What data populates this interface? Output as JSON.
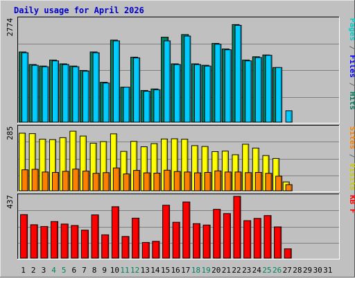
{
  "chart_data": [
    {
      "type": "bar",
      "title": "Daily usage for April 2026",
      "categories": [
        "1",
        "2",
        "3",
        "4",
        "5",
        "6",
        "7",
        "8",
        "9",
        "10",
        "11",
        "12",
        "13",
        "14",
        "15",
        "16",
        "17",
        "18",
        "19",
        "20",
        "21",
        "22",
        "23",
        "24",
        "25",
        "26",
        "27",
        "28",
        "29",
        "30",
        "31"
      ],
      "weekend_days": [
        "4",
        "5",
        "11",
        "12",
        "18",
        "19",
        "25",
        "26"
      ],
      "ylim": [
        0,
        2774
      ],
      "max_label": "2774",
      "right_label": [
        {
          "text": "Pages",
          "color": "#00cccc"
        },
        {
          "text": " / ",
          "color": "#666666"
        },
        {
          "text": "Files",
          "color": "#0000ff"
        },
        {
          "text": " / ",
          "color": "#666666"
        },
        {
          "text": "Hits",
          "color": "#007f5f"
        }
      ],
      "series": [
        {
          "name": "Hits",
          "color": "#008060",
          "values": [
            1895,
            1555,
            1515,
            1675,
            1575,
            1515,
            1395,
            1895,
            1075,
            2215,
            945,
            1755,
            855,
            895,
            2295,
            1575,
            2365,
            1575,
            1535,
            2125,
            1975,
            2635,
            1675,
            1765,
            1815,
            1475,
            0,
            0,
            0,
            0,
            0
          ]
        },
        {
          "name": "Files",
          "color": "#00ccff",
          "values": [
            1875,
            1535,
            1495,
            1655,
            1555,
            1495,
            1375,
            1875,
            1055,
            2195,
            945,
            1735,
            835,
            875,
            2195,
            1555,
            2325,
            1555,
            1515,
            2105,
            1955,
            2615,
            1655,
            1745,
            1805,
            1475,
            305,
            0,
            0,
            0,
            0
          ]
        }
      ]
    },
    {
      "type": "bar",
      "ylim": [
        0,
        285
      ],
      "max_label": "285",
      "right_label": [
        {
          "text": "Sites",
          "color": "#ff8000"
        },
        {
          "text": " / ",
          "color": "#666666"
        },
        {
          "text": "Visits",
          "color": "#cccc00"
        }
      ],
      "series": [
        {
          "name": "Visits",
          "color": "#ffff00",
          "values": [
            260,
            258,
            233,
            231,
            240,
            269,
            247,
            215,
            222,
            257,
            178,
            223,
            199,
            213,
            234,
            235,
            233,
            204,
            200,
            177,
            179,
            163,
            210,
            193,
            159,
            146,
            40,
            0,
            0,
            0,
            0
          ]
        },
        {
          "name": "Sites",
          "color": "#ff8000",
          "values": [
            95,
            97,
            85,
            83,
            88,
            98,
            89,
            79,
            82,
            103,
            76,
            92,
            81,
            80,
            93,
            87,
            85,
            81,
            83,
            90,
            85,
            85,
            82,
            83,
            79,
            66,
            28,
            0,
            0,
            0,
            0
          ]
        }
      ]
    },
    {
      "type": "bar",
      "ylim": [
        0,
        437
      ],
      "max_label": "437",
      "right_label": [
        {
          "text": "KB F",
          "color": "#ff0000"
        }
      ],
      "series": [
        {
          "name": "KB F",
          "color": "#ff0000",
          "values": [
            308,
            236,
            224,
            259,
            241,
            231,
            198,
            306,
            165,
            364,
            153,
            283,
            111,
            119,
            374,
            254,
            397,
            244,
            234,
            345,
            315,
            437,
            265,
            281,
            301,
            221,
            66,
            0,
            0,
            0,
            0
          ]
        }
      ]
    }
  ]
}
